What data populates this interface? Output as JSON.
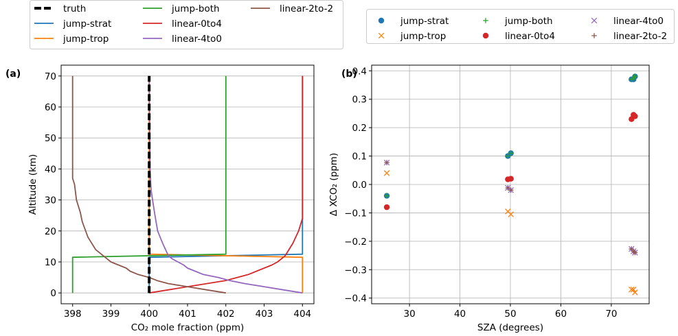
{
  "panel_labels": {
    "a": "(a)",
    "b": "(b)"
  },
  "legend_a": [
    {
      "name": "truth",
      "color": "#000000",
      "dashed": true
    },
    {
      "name": "jump-strat",
      "color": "#1f77b4"
    },
    {
      "name": "jump-trop",
      "color": "#ff7f0e"
    },
    {
      "name": "jump-both",
      "color": "#2ca02c"
    },
    {
      "name": "linear-0to4",
      "color": "#d62728"
    },
    {
      "name": "linear-4to0",
      "color": "#9467bd"
    },
    {
      "name": "linear-2to-2",
      "color": "#8c564b"
    }
  ],
  "legend_b": [
    {
      "name": "jump-strat",
      "color": "#1f77b4",
      "marker": "circle"
    },
    {
      "name": "jump-trop",
      "color": "#ff7f0e",
      "marker": "x"
    },
    {
      "name": "jump-both",
      "color": "#2ca02c",
      "marker": "plus"
    },
    {
      "name": "linear-0to4",
      "color": "#d62728",
      "marker": "circle"
    },
    {
      "name": "linear-4to0",
      "color": "#9467bd",
      "marker": "x"
    },
    {
      "name": "linear-2to-2",
      "color": "#8c564b",
      "marker": "plus"
    }
  ],
  "chart_data": [
    {
      "type": "line",
      "xlabel": "CO₂ mole fraction (ppm)",
      "ylabel": "Altitude (km)",
      "xlim": [
        397.7,
        404.3
      ],
      "ylim": [
        -3.5,
        73.5
      ],
      "xticks": [
        398,
        399,
        400,
        401,
        402,
        403,
        404
      ],
      "yticks": [
        0,
        10,
        20,
        30,
        40,
        50,
        60,
        70
      ],
      "grid": "y",
      "series": [
        {
          "name": "truth",
          "color": "#000000",
          "dashed": true,
          "points": [
            [
              400,
              0
            ],
            [
              400,
              70
            ]
          ]
        },
        {
          "name": "jump-strat",
          "color": "#1f77b4",
          "points": [
            [
              400,
              0
            ],
            [
              400,
              11.5
            ],
            [
              404,
              12.5
            ],
            [
              404,
              70
            ]
          ]
        },
        {
          "name": "jump-trop",
          "color": "#ff7f0e",
          "points": [
            [
              404,
              0
            ],
            [
              404,
              11.5
            ],
            [
              400,
              12.5
            ],
            [
              400,
              70
            ]
          ]
        },
        {
          "name": "jump-both",
          "color": "#2ca02c",
          "points": [
            [
              398,
              0
            ],
            [
              398,
              11.5
            ],
            [
              402,
              12.5
            ],
            [
              402,
              70
            ]
          ]
        },
        {
          "name": "linear-0to4",
          "color": "#d62728",
          "points": [
            [
              400,
              0
            ],
            [
              400.5,
              1
            ],
            [
              401,
              2
            ],
            [
              401.5,
              3
            ],
            [
              402,
              4
            ],
            [
              402.3,
              5
            ],
            [
              402.6,
              6
            ],
            [
              402.8,
              7
            ],
            [
              403,
              8
            ],
            [
              403.2,
              9
            ],
            [
              403.35,
              10
            ],
            [
              403.45,
              11
            ],
            [
              403.55,
              12
            ],
            [
              403.75,
              16
            ],
            [
              403.9,
              20
            ],
            [
              404,
              24
            ],
            [
              404,
              70
            ]
          ]
        },
        {
          "name": "linear-4to0",
          "color": "#9467bd",
          "points": [
            [
              404,
              0
            ],
            [
              403.5,
              1
            ],
            [
              403,
              2
            ],
            [
              402.5,
              3
            ],
            [
              402.1,
              4
            ],
            [
              401.8,
              5
            ],
            [
              401.4,
              6
            ],
            [
              401.2,
              7
            ],
            [
              401,
              8
            ],
            [
              400.9,
              9
            ],
            [
              400.75,
              10
            ],
            [
              400.6,
              11
            ],
            [
              400.5,
              12
            ],
            [
              400.35,
              16
            ],
            [
              400.22,
              20
            ],
            [
              400.15,
              25
            ],
            [
              400.05,
              33
            ],
            [
              400.02,
              40
            ],
            [
              400,
              70
            ]
          ]
        },
        {
          "name": "linear-2to-2",
          "color": "#8c564b",
          "points": [
            [
              402,
              0
            ],
            [
              401.5,
              1
            ],
            [
              401,
              2
            ],
            [
              400.5,
              3
            ],
            [
              400.2,
              4
            ],
            [
              400,
              5
            ],
            [
              399.7,
              6
            ],
            [
              399.5,
              7
            ],
            [
              399.4,
              8
            ],
            [
              399.2,
              9
            ],
            [
              399,
              10
            ],
            [
              398.8,
              12
            ],
            [
              398.6,
              14
            ],
            [
              398.4,
              18
            ],
            [
              398.25,
              23
            ],
            [
              398.2,
              26
            ],
            [
              398.1,
              30
            ],
            [
              398.05,
              35
            ],
            [
              398,
              37
            ],
            [
              398,
              70
            ]
          ]
        }
      ]
    },
    {
      "type": "scatter",
      "xlabel": "SZA (degrees)",
      "ylabel": "Δ XCO₂ (ppm)",
      "xlim": [
        22.5,
        77.5
      ],
      "ylim": [
        -0.42,
        0.42
      ],
      "xticks": [
        30,
        40,
        50,
        60,
        70
      ],
      "yticks": [
        -0.4,
        -0.3,
        -0.2,
        -0.1,
        0.0,
        0.1,
        0.2,
        0.3,
        0.4
      ],
      "ytick_labels": [
        "−0.4",
        "−0.3",
        "−0.2",
        "−0.1",
        "0.0",
        "0.1",
        "0.2",
        "0.3",
        "0.4"
      ],
      "grid": true,
      "series": [
        {
          "name": "jump-strat",
          "color": "#1f77b4",
          "marker": "circle",
          "points": [
            [
              25.5,
              -0.04
            ],
            [
              49.5,
              0.1
            ],
            [
              50.1,
              0.11
            ],
            [
              74.0,
              0.37
            ],
            [
              74.4,
              0.37
            ],
            [
              74.7,
              0.38
            ]
          ]
        },
        {
          "name": "jump-trop",
          "color": "#ff7f0e",
          "marker": "x",
          "points": [
            [
              25.5,
              0.04
            ],
            [
              49.5,
              -0.095
            ],
            [
              50.1,
              -0.105
            ],
            [
              74.0,
              -0.37
            ],
            [
              74.4,
              -0.37
            ],
            [
              74.7,
              -0.38
            ]
          ]
        },
        {
          "name": "jump-both",
          "color": "#2ca02c",
          "marker": "plus",
          "points": [
            [
              25.5,
              -0.04
            ],
            [
              49.5,
              0.1
            ],
            [
              50.1,
              0.11
            ],
            [
              74.0,
              0.37
            ],
            [
              74.4,
              0.375
            ],
            [
              74.7,
              0.38
            ]
          ]
        },
        {
          "name": "linear-0to4",
          "color": "#d62728",
          "marker": "circle",
          "points": [
            [
              25.5,
              -0.08
            ],
            [
              49.5,
              0.018
            ],
            [
              50.1,
              0.02
            ],
            [
              74.0,
              0.23
            ],
            [
              74.4,
              0.245
            ],
            [
              74.7,
              0.24
            ]
          ]
        },
        {
          "name": "linear-4to0",
          "color": "#9467bd",
          "marker": "x",
          "points": [
            [
              25.5,
              0.077
            ],
            [
              49.5,
              -0.012
            ],
            [
              50.1,
              -0.02
            ],
            [
              74.0,
              -0.227
            ],
            [
              74.4,
              -0.235
            ],
            [
              74.7,
              -0.24
            ]
          ]
        },
        {
          "name": "linear-2to-2",
          "color": "#8c564b",
          "marker": "plus",
          "points": [
            [
              25.5,
              0.077
            ],
            [
              49.5,
              -0.012
            ],
            [
              50.1,
              -0.02
            ],
            [
              74.0,
              -0.227
            ],
            [
              74.4,
              -0.235
            ],
            [
              74.7,
              -0.24
            ]
          ]
        }
      ]
    }
  ]
}
